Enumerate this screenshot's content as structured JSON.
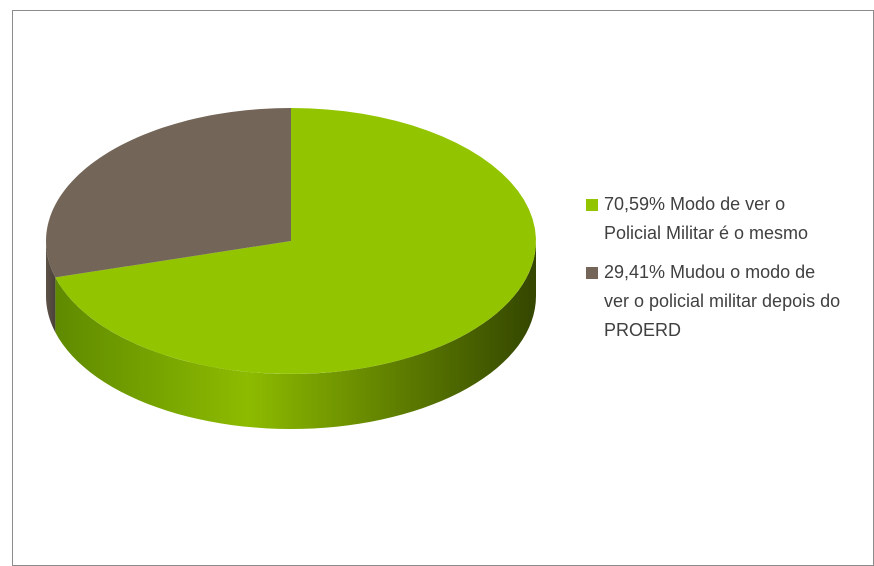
{
  "chart_data": {
    "type": "pie3d",
    "categories": [
      "70,59% Modo de ver o Policial Militar é o mesmo",
      "29,41% Mudou o modo de ver o policial militar depois do PROERD"
    ],
    "values": [
      70.59,
      29.41
    ],
    "colors": [
      "#92c400",
      "#736658"
    ],
    "legend": "right"
  }
}
